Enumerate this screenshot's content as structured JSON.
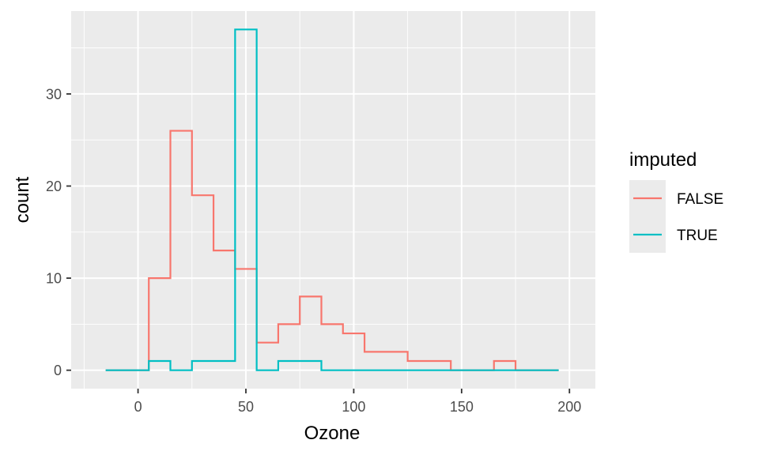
{
  "chart_data": {
    "type": "histogram-step",
    "xlabel": "Ozone",
    "ylabel": "count",
    "xlim": [
      -31,
      212
    ],
    "ylim": [
      -2,
      39
    ],
    "x_ticks": [
      0,
      50,
      100,
      150,
      200
    ],
    "y_ticks": [
      0,
      10,
      20,
      30
    ],
    "grid": true,
    "legend": {
      "title": "imputed",
      "placement": "right"
    },
    "bin_width": 10,
    "bin_centers": [
      -10,
      0,
      10,
      20,
      30,
      40,
      50,
      60,
      70,
      80,
      90,
      100,
      110,
      120,
      130,
      140,
      150,
      160,
      170,
      180,
      190
    ],
    "series": [
      {
        "name": "FALSE",
        "color": "#F8766D",
        "values": [
          0,
          0,
          10,
          26,
          19,
          13,
          11,
          3,
          5,
          8,
          5,
          4,
          2,
          2,
          1,
          1,
          0,
          0,
          1,
          0,
          0
        ]
      },
      {
        "name": "TRUE",
        "color": "#00BFC4",
        "values": [
          0,
          0,
          1,
          0,
          1,
          1,
          37,
          0,
          1,
          1,
          0,
          0,
          0,
          0,
          0,
          0,
          0,
          0,
          0,
          0,
          0
        ]
      }
    ]
  }
}
